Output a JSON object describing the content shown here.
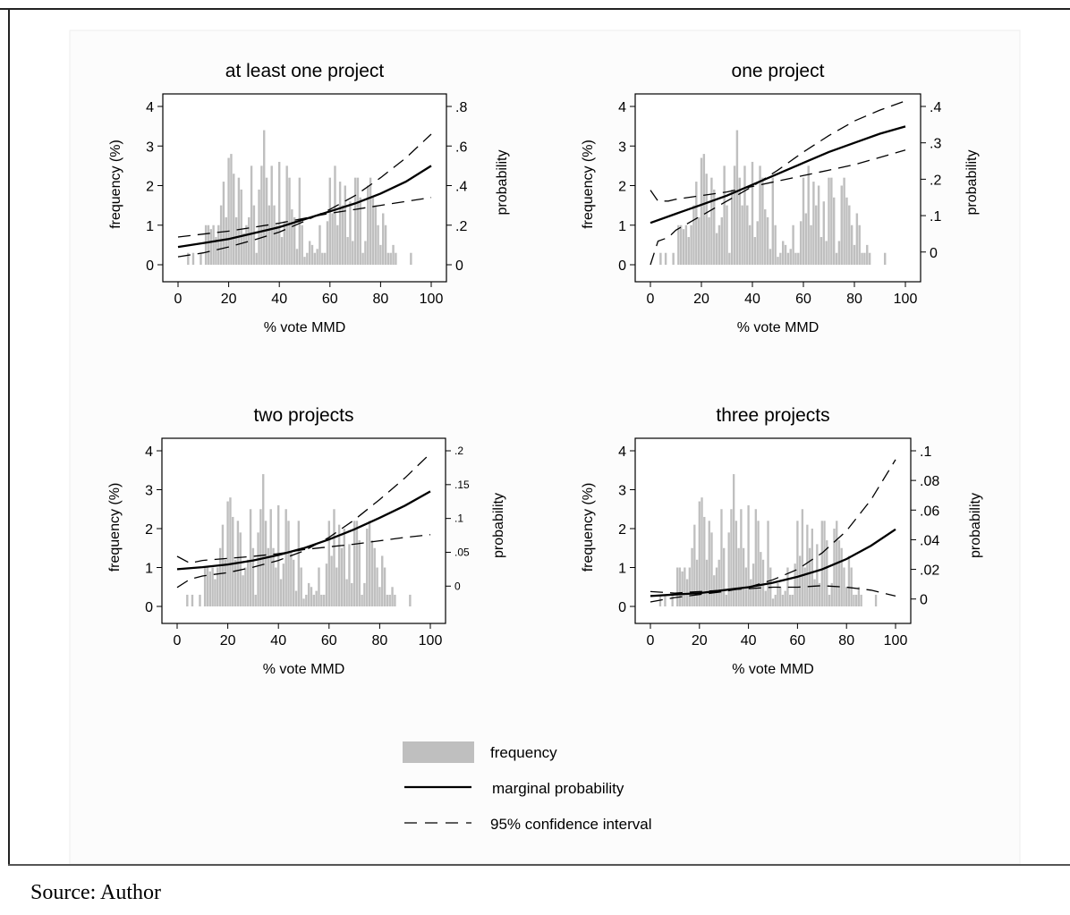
{
  "source_note": "Source: Author",
  "colors": {
    "frequency_bars": "#bfbfbf",
    "lines": "#000000",
    "plot_background": "#ffffff"
  },
  "legend": {
    "position": "bottom-center",
    "items": [
      {
        "label": "frequency",
        "symbol": "gray-bar"
      },
      {
        "label": "marginal probability",
        "symbol": "solid-line"
      },
      {
        "label": "95% confidence interval",
        "symbol": "dashed-line"
      }
    ]
  },
  "frequency_bins": {
    "x": [
      4,
      6,
      9,
      11,
      12,
      13,
      14,
      15,
      16,
      17,
      18,
      19,
      20,
      21,
      22,
      23,
      24,
      25,
      26,
      27,
      28,
      29,
      30,
      31,
      32,
      33,
      34,
      35,
      36,
      37,
      38,
      39,
      40,
      41,
      42,
      43,
      44,
      45,
      46,
      47,
      48,
      49,
      50,
      51,
      52,
      53,
      54,
      55,
      56,
      57,
      58,
      59,
      60,
      61,
      62,
      63,
      64,
      65,
      66,
      67,
      68,
      69,
      70,
      71,
      72,
      73,
      74,
      75,
      76,
      77,
      78,
      79,
      80,
      81,
      82,
      83,
      84,
      85,
      86,
      92
    ],
    "y": [
      0.3,
      0.3,
      0.3,
      1.0,
      1.0,
      0.9,
      1.0,
      0.7,
      1.0,
      1.5,
      2.1,
      1.2,
      2.7,
      2.8,
      2.3,
      1.2,
      2.2,
      1.9,
      0.8,
      1.0,
      1.2,
      2.5,
      1.5,
      0.3,
      1.9,
      2.5,
      3.4,
      2.2,
      1.5,
      2.5,
      1.5,
      1.0,
      2.6,
      0.7,
      1.1,
      2.5,
      2.2,
      1.4,
      1.2,
      0.4,
      2.2,
      1.0,
      0.2,
      0.3,
      0.6,
      0.5,
      0.3,
      0.4,
      1.0,
      0.3,
      0.3,
      1.1,
      2.2,
      1.3,
      2.5,
      1.0,
      2.1,
      1.5,
      2.0,
      0.7,
      1.6,
      0.6,
      2.2,
      2.2,
      1.7,
      0.3,
      0.6,
      2.0,
      2.2,
      1.7,
      1.5,
      1.0,
      0.5,
      1.3,
      1.0,
      0.3,
      0.3,
      0.5,
      0.3,
      0.3
    ]
  },
  "chart_data": [
    {
      "type": "bar",
      "title": "at least one project",
      "xlabel": "% vote MMD",
      "ylabel": "frequency (%)",
      "y2label": "probability",
      "xlim": [
        0,
        100
      ],
      "ylim": [
        0,
        4
      ],
      "y2lim": [
        0,
        0.8
      ],
      "x_ticks": [
        "0",
        "20",
        "40",
        "60",
        "80",
        "100"
      ],
      "y_ticks": [
        "0",
        "1",
        "2",
        "3",
        "4"
      ],
      "y2_ticks": [
        "0",
        ".2",
        ".4",
        ".6",
        ".8"
      ],
      "y2_tick_values": [
        0,
        0.2,
        0.4,
        0.6,
        0.8
      ],
      "grid": false,
      "series": [
        {
          "name": "marginal probability",
          "style": "solid",
          "x": [
            0,
            10,
            20,
            30,
            40,
            50,
            60,
            70,
            80,
            90,
            100
          ],
          "y": [
            0.09,
            0.11,
            0.13,
            0.16,
            0.19,
            0.23,
            0.27,
            0.31,
            0.36,
            0.42,
            0.5
          ]
        },
        {
          "name": "95% confidence interval",
          "style": "dashed",
          "x": [
            0,
            10,
            20,
            30,
            40,
            50,
            60,
            70,
            80,
            90,
            100
          ],
          "y": [
            0.14,
            0.155,
            0.17,
            0.19,
            0.21,
            0.235,
            0.26,
            0.28,
            0.3,
            0.32,
            0.34
          ]
        },
        {
          "name": "95% confidence interval",
          "style": "dashed",
          "x": [
            0,
            10,
            20,
            30,
            40,
            50,
            60,
            70,
            80,
            90,
            100
          ],
          "y": [
            0.04,
            0.06,
            0.09,
            0.125,
            0.165,
            0.22,
            0.28,
            0.35,
            0.44,
            0.54,
            0.66
          ]
        }
      ]
    },
    {
      "type": "bar",
      "title": "one project",
      "xlabel": "% vote MMD",
      "ylabel": "frequency (%)",
      "y2label": "probability",
      "xlim": [
        0,
        100
      ],
      "ylim": [
        0,
        4
      ],
      "y2lim": [
        -0.035,
        0.4
      ],
      "x_ticks": [
        "0",
        "20",
        "40",
        "60",
        "80",
        "100"
      ],
      "y_ticks": [
        "0",
        "1",
        "2",
        "3",
        "4"
      ],
      "y2_ticks": [
        "0",
        ".1",
        ".2",
        ".3",
        ".4"
      ],
      "y2_tick_values": [
        0,
        0.1,
        0.2,
        0.3,
        0.4
      ],
      "grid": false,
      "series": [
        {
          "name": "marginal probability",
          "style": "solid",
          "x": [
            0,
            10,
            20,
            30,
            40,
            50,
            60,
            70,
            80,
            90,
            100
          ],
          "y": [
            0.08,
            0.105,
            0.13,
            0.155,
            0.185,
            0.215,
            0.245,
            0.275,
            0.3,
            0.325,
            0.345
          ]
        },
        {
          "name": "95% confidence interval",
          "style": "dashed",
          "x": [
            0,
            3,
            7,
            10,
            20,
            30,
            40,
            50,
            60,
            70,
            80,
            90,
            100
          ],
          "y": [
            0.17,
            0.14,
            0.14,
            0.145,
            0.155,
            0.165,
            0.18,
            0.195,
            0.21,
            0.225,
            0.24,
            0.26,
            0.28
          ]
        },
        {
          "name": "95% confidence interval",
          "style": "dashed",
          "x": [
            0,
            3,
            7,
            10,
            20,
            30,
            40,
            50,
            60,
            70,
            80,
            90,
            100
          ],
          "y": [
            -0.035,
            0.03,
            0.04,
            0.06,
            0.1,
            0.14,
            0.18,
            0.225,
            0.275,
            0.32,
            0.36,
            0.39,
            0.415
          ]
        }
      ]
    },
    {
      "type": "bar",
      "title": "two projects",
      "xlabel": "% vote MMD",
      "ylabel": "frequency (%)",
      "y2label": "probability",
      "xlim": [
        0,
        100
      ],
      "ylim": [
        0,
        4
      ],
      "y2lim": [
        -0.03,
        0.2
      ],
      "x_ticks": [
        "0",
        "20",
        "40",
        "60",
        "80",
        "100"
      ],
      "y_ticks": [
        "0",
        "1",
        "2",
        "3",
        "4"
      ],
      "y2_ticks": [
        "0",
        ".05",
        ".1",
        ".15",
        ".2"
      ],
      "y2_tick_values": [
        0,
        0.05,
        0.1,
        0.15,
        0.2
      ],
      "grid": false,
      "series": [
        {
          "name": "marginal probability",
          "style": "solid",
          "x": [
            0,
            10,
            20,
            30,
            40,
            50,
            60,
            70,
            80,
            90,
            100
          ],
          "y": [
            0.025,
            0.028,
            0.032,
            0.038,
            0.046,
            0.056,
            0.069,
            0.084,
            0.101,
            0.119,
            0.14
          ]
        },
        {
          "name": "95% confidence interval",
          "style": "dashed",
          "x": [
            0,
            5,
            10,
            20,
            30,
            40,
            50,
            60,
            70,
            80,
            90,
            100
          ],
          "y": [
            0.044,
            0.034,
            0.038,
            0.041,
            0.044,
            0.048,
            0.054,
            0.058,
            0.062,
            0.067,
            0.072,
            0.076
          ]
        },
        {
          "name": "95% confidence interval",
          "style": "dashed",
          "x": [
            0,
            5,
            10,
            20,
            30,
            40,
            50,
            60,
            70,
            80,
            90,
            100
          ],
          "y": [
            -0.002,
            0.01,
            0.015,
            0.02,
            0.028,
            0.038,
            0.052,
            0.072,
            0.098,
            0.128,
            0.16,
            0.196
          ]
        }
      ]
    },
    {
      "type": "bar",
      "title": "three projects",
      "xlabel": "% vote MMD",
      "ylabel": "frequency (%)",
      "y2label": "probability",
      "xlim": [
        0,
        100
      ],
      "ylim": [
        0,
        4
      ],
      "y2lim": [
        -0.005,
        0.1
      ],
      "x_ticks": [
        "0",
        "20",
        "40",
        "60",
        "80",
        "100"
      ],
      "y_ticks": [
        "0",
        "1",
        "2",
        "3",
        "4"
      ],
      "y2_ticks": [
        "0",
        ".02",
        ".04",
        ".06",
        ".08",
        ".1"
      ],
      "y2_tick_values": [
        0,
        0.02,
        0.04,
        0.06,
        0.08,
        0.1
      ],
      "grid": false,
      "series": [
        {
          "name": "marginal probability",
          "style": "solid",
          "x": [
            0,
            10,
            20,
            30,
            40,
            50,
            60,
            70,
            80,
            90,
            100
          ],
          "y": [
            0.002,
            0.003,
            0.004,
            0.006,
            0.008,
            0.011,
            0.015,
            0.02,
            0.027,
            0.036,
            0.047
          ]
        },
        {
          "name": "95% confidence interval",
          "style": "dashed",
          "x": [
            0,
            10,
            20,
            30,
            40,
            50,
            60,
            70,
            80,
            90,
            100
          ],
          "y": [
            0.005,
            0.004,
            0.005,
            0.006,
            0.007,
            0.008,
            0.008,
            0.009,
            0.008,
            0.006,
            0.002
          ]
        },
        {
          "name": "95% confidence interval",
          "style": "dashed",
          "x": [
            0,
            10,
            20,
            30,
            40,
            50,
            60,
            70,
            80,
            90,
            100
          ],
          "y": [
            -0.002,
            0.001,
            0.003,
            0.005,
            0.008,
            0.013,
            0.02,
            0.031,
            0.046,
            0.067,
            0.094
          ]
        }
      ]
    }
  ]
}
